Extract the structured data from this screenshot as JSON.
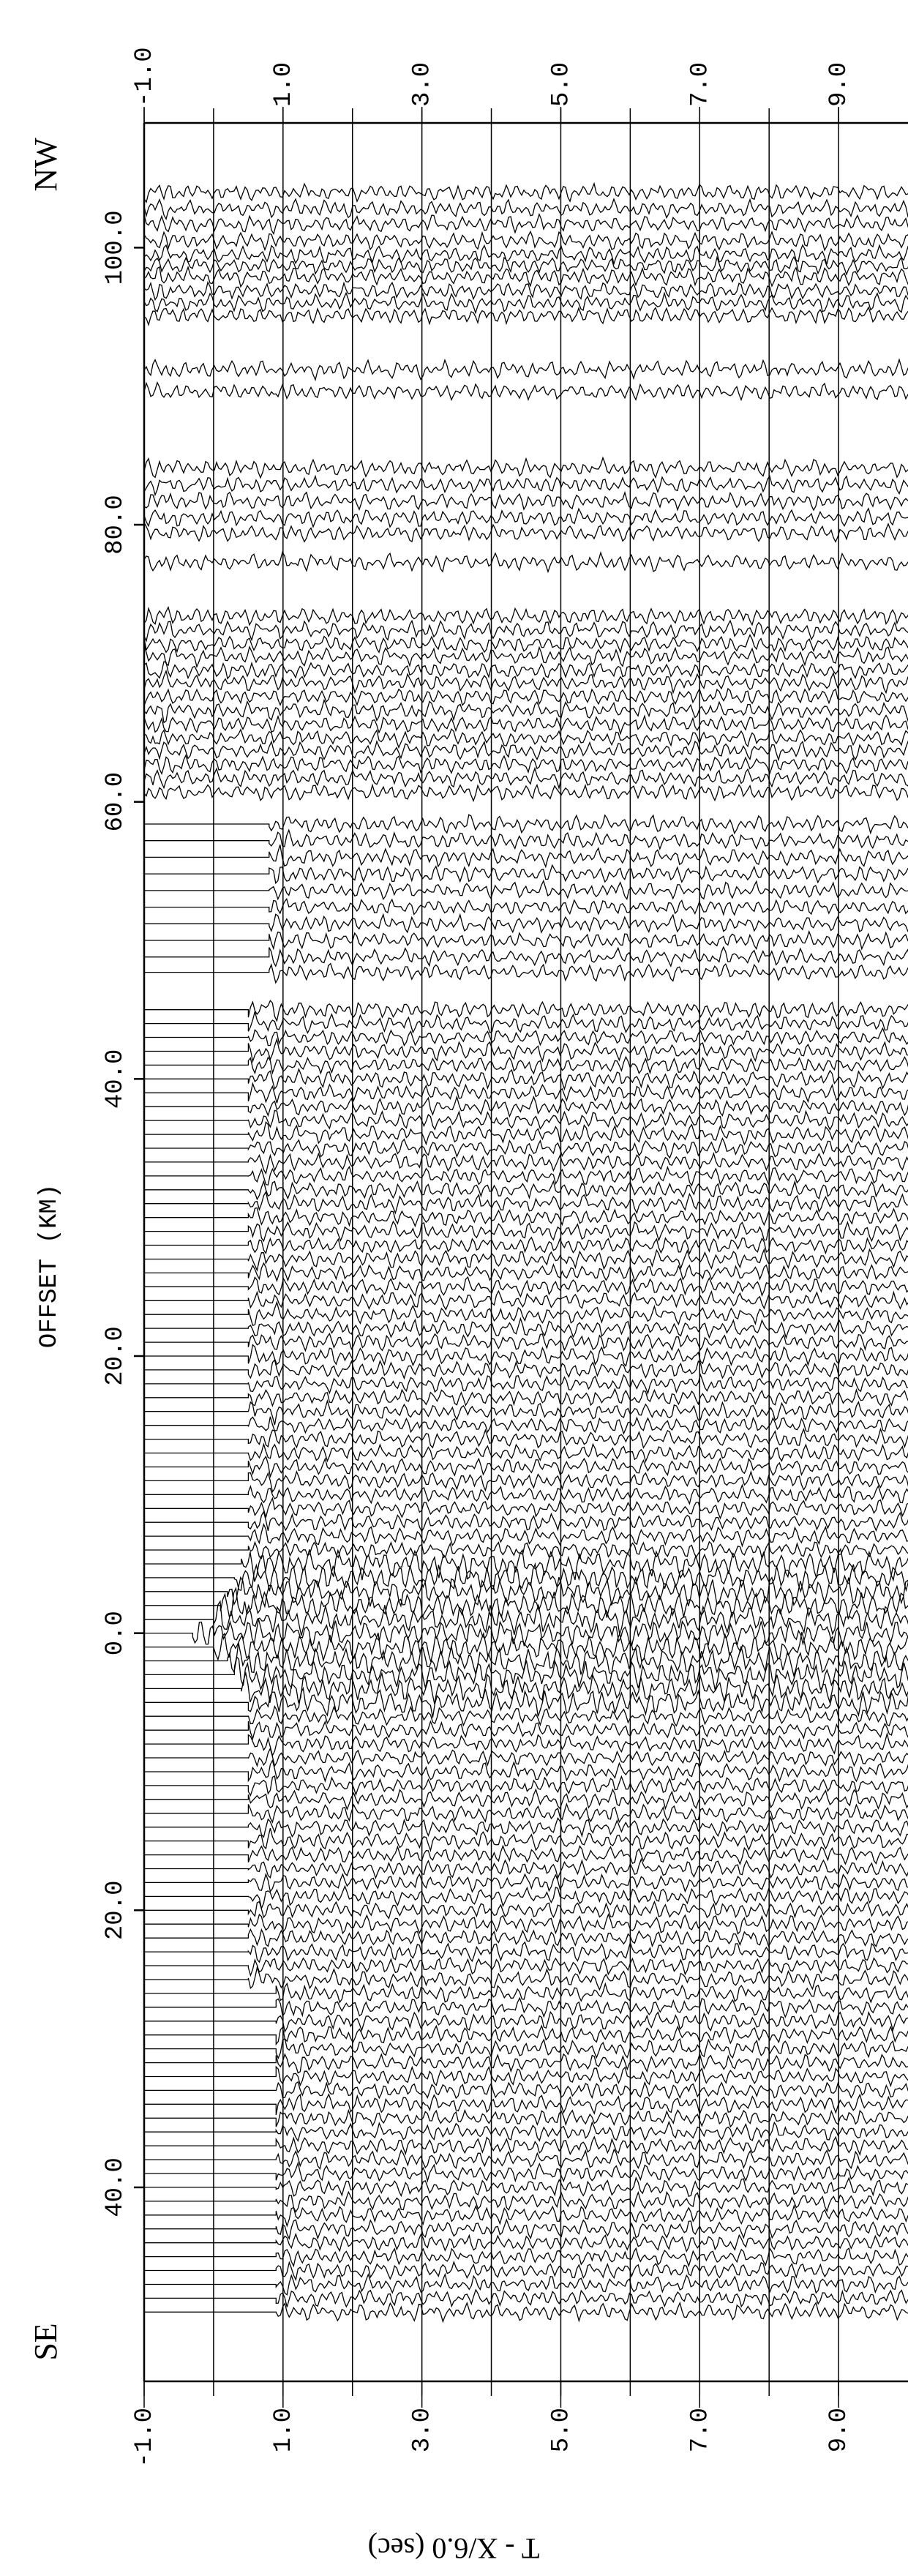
{
  "chart_data": {
    "type": "record-section",
    "xlabel": "T - X/6.0 (sec)",
    "ylabel": "OFFSET (KM)",
    "top_label": "NW",
    "bottom_label": "SE",
    "xlim": [
      -1,
      10
    ],
    "xticks": [
      {
        "value": -1,
        "label": "-1.0"
      },
      {
        "value": 1,
        "label": "1.0"
      },
      {
        "value": 3,
        "label": "3.0"
      },
      {
        "value": 5,
        "label": "5.0"
      },
      {
        "value": 7,
        "label": "7.0"
      },
      {
        "value": 9,
        "label": "9.0"
      }
    ],
    "grid_xticks": [
      -1,
      0,
      1,
      2,
      3,
      4,
      5,
      6,
      7,
      8,
      9
    ],
    "ylim": [
      109,
      -54
    ],
    "yticks": [
      {
        "value": 100,
        "label": "100.0"
      },
      {
        "value": 80,
        "label": "80.0"
      },
      {
        "value": 60,
        "label": "60.0"
      },
      {
        "value": 40,
        "label": "40.0"
      },
      {
        "value": 20,
        "label": "20.0"
      },
      {
        "value": 0,
        "label": "0.0"
      },
      {
        "value": -20,
        "label": "20.0"
      },
      {
        "value": -40,
        "label": "40.0"
      }
    ],
    "grid": true,
    "color": "#000000",
    "offsets": [
      104,
      102.8,
      101.7,
      100.5,
      99.5,
      98.7,
      97.9,
      96.9,
      96,
      95.1,
      91.2,
      89.6,
      84.1,
      82.9,
      81.7,
      80.5,
      79.4,
      77.3,
      73.4,
      72.4,
      71.4,
      70.5,
      69.5,
      68.6,
      67.6,
      66.6,
      65.6,
      64.6,
      63.7,
      62.7,
      61.7,
      60.7,
      58.4,
      57.2,
      56,
      54.8,
      53.6,
      52.4,
      51.2,
      50,
      48.8,
      47.7,
      45,
      44,
      43,
      42,
      41,
      40,
      39,
      38,
      37,
      36,
      35,
      34,
      33,
      32,
      31,
      30,
      29,
      28,
      27,
      26,
      25,
      24,
      23,
      22,
      21,
      20,
      19,
      18,
      17,
      16,
      15,
      14,
      13,
      12,
      11,
      10,
      9,
      8,
      7,
      6,
      5,
      4,
      3,
      2,
      1,
      0,
      -1,
      -2,
      -3,
      -4,
      -5,
      -6,
      -7,
      -8,
      -9,
      -10,
      -11,
      -12,
      -13,
      -14,
      -15,
      -16,
      -17,
      -18,
      -19,
      -20,
      -21,
      -22,
      -23,
      -24,
      -25,
      -26,
      -27,
      -28,
      -29,
      -30,
      -31,
      -32,
      -33,
      -34,
      -35,
      -36,
      -37,
      -38,
      -39,
      -40,
      -41,
      -42,
      -43,
      -44,
      -45,
      -46,
      -47,
      -48,
      -49
    ],
    "values": [
      -1,
      -1,
      -1,
      -1,
      -1,
      -1,
      -1,
      -1,
      -1,
      -1,
      -1,
      -1,
      -1,
      -1,
      -1,
      -1,
      -1,
      -1,
      -1,
      -1,
      -1,
      -1,
      -1,
      -1,
      -1,
      -1,
      -1,
      -1,
      -1,
      -1,
      -1,
      -1,
      0.8,
      0.8,
      0.8,
      0.8,
      0.8,
      0.8,
      0.8,
      0.8,
      0.8,
      0.8,
      0.5,
      0.5,
      0.5,
      0.5,
      0.5,
      0.5,
      0.5,
      0.5,
      0.5,
      0.5,
      0.5,
      0.5,
      0.5,
      0.5,
      0.5,
      0.5,
      0.5,
      0.5,
      0.5,
      0.5,
      0.5,
      0.5,
      0.5,
      0.5,
      0.5,
      0.5,
      0.5,
      0.5,
      0.5,
      0.5,
      0.5,
      0.5,
      0.5,
      0.5,
      0.5,
      0.5,
      0.5,
      0.5,
      0.5,
      0.5,
      0.4,
      0.3,
      0.2,
      0.1,
      0,
      -0.3,
      0,
      0.2,
      0.3,
      0.4,
      0.5,
      0.5,
      0.5,
      0.5,
      0.5,
      0.5,
      0.5,
      0.5,
      0.5,
      0.5,
      0.5,
      0.5,
      0.5,
      0.5,
      0.5,
      0.5,
      0.5,
      0.5,
      0.5,
      0.5,
      0.5,
      0.9,
      0.9,
      0.9,
      0.9,
      0.9,
      0.9,
      0.9,
      0.9,
      0.9,
      0.9,
      0.9,
      0.9,
      0.9,
      0.9,
      0.9,
      0.9,
      0.9,
      0.9,
      0.9,
      0.9,
      0.9,
      0.9,
      0.9,
      0.9
    ]
  }
}
